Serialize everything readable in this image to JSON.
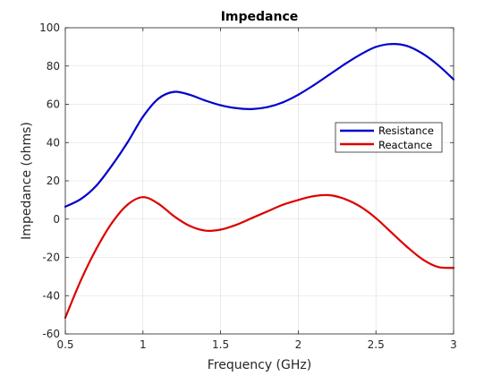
{
  "chart_data": {
    "type": "line",
    "title": "Impedance",
    "xlabel": "Frequency (GHz)",
    "ylabel": "Impedance (ohms)",
    "xlim": [
      0.5,
      3
    ],
    "ylim": [
      -60,
      100
    ],
    "xticks": [
      "0.5",
      "1",
      "1.5",
      "2",
      "2.5",
      "3"
    ],
    "yticks": [
      "-60",
      "-40",
      "-20",
      "0",
      "20",
      "40",
      "60",
      "80",
      "100"
    ],
    "grid": true,
    "legend_position": "right",
    "series": [
      {
        "name": "Resistance",
        "color": "#0000cc",
        "x": [
          0.5,
          0.6,
          0.7,
          0.8,
          0.9,
          1.0,
          1.1,
          1.2,
          1.3,
          1.4,
          1.5,
          1.6,
          1.7,
          1.8,
          1.9,
          2.0,
          2.1,
          2.2,
          2.3,
          2.4,
          2.5,
          2.6,
          2.7,
          2.8,
          2.9,
          3.0
        ],
        "y": [
          6.5,
          10.5,
          17.5,
          28,
          40,
          53.5,
          63,
          66.5,
          65,
          62,
          59.5,
          58,
          57.5,
          58.5,
          61,
          65,
          70,
          75.5,
          81,
          86,
          90,
          91.5,
          90.5,
          86.5,
          80.5,
          73
        ]
      },
      {
        "name": "Reactance",
        "color": "#dd0000",
        "x": [
          0.5,
          0.6,
          0.7,
          0.8,
          0.9,
          1.0,
          1.1,
          1.2,
          1.3,
          1.4,
          1.5,
          1.6,
          1.7,
          1.8,
          1.9,
          2.0,
          2.1,
          2.2,
          2.3,
          2.4,
          2.5,
          2.6,
          2.7,
          2.8,
          2.9,
          3.0
        ],
        "y": [
          -51.5,
          -32,
          -15.5,
          -2,
          7.5,
          11.5,
          8,
          1.5,
          -3.5,
          -6,
          -5.5,
          -3,
          0.5,
          4,
          7.5,
          10,
          12,
          12.5,
          10.5,
          6.5,
          0.5,
          -7,
          -14.5,
          -21,
          -25,
          -25.5
        ]
      }
    ]
  }
}
